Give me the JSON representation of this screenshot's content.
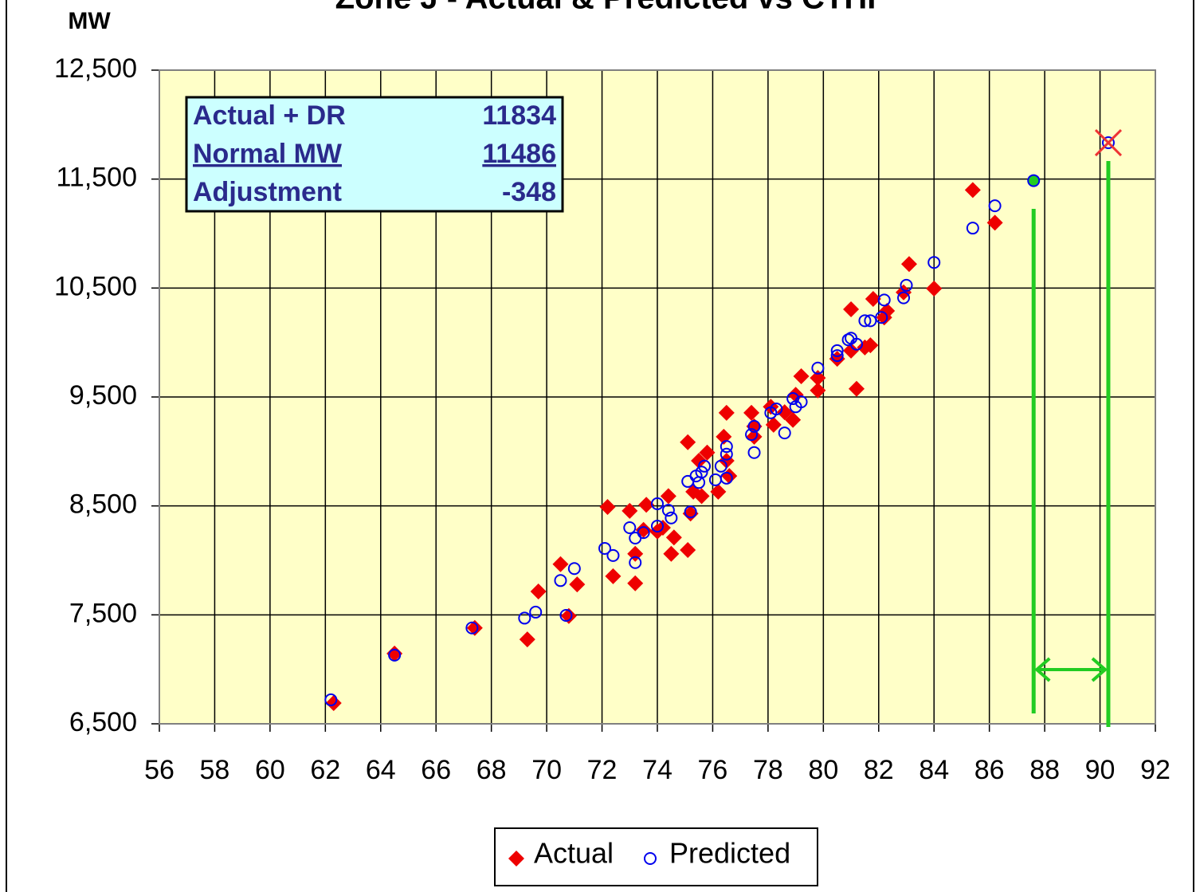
{
  "chart_data": {
    "type": "scatter",
    "title": "Zone J - Actual & Predicted vs CTHI",
    "y_label": "MW",
    "xlim": [
      56,
      92
    ],
    "xticks": [
      56,
      58,
      60,
      62,
      64,
      66,
      68,
      70,
      72,
      74,
      76,
      78,
      80,
      82,
      84,
      86,
      88,
      90,
      92
    ],
    "ylim": [
      6500,
      12500
    ],
    "yticks": [
      {
        "value": 6500,
        "label": "6,500"
      },
      {
        "value": 7500,
        "label": "7,500"
      },
      {
        "value": 8500,
        "label": "8,500"
      },
      {
        "value": 9500,
        "label": "9,500"
      },
      {
        "value": 10500,
        "label": "10,500"
      },
      {
        "value": 11500,
        "label": "11,500"
      },
      {
        "value": 12500,
        "label": "12,500"
      }
    ],
    "grid": true,
    "legend": "bottom",
    "series": [
      {
        "name": "Actual",
        "color": "#ee0000",
        "marker": "diamond",
        "x": [
          62.3,
          64.5,
          67.4,
          69.3,
          69.7,
          70.5,
          70.8,
          71.1,
          72.2,
          72.4,
          73.0,
          73.2,
          73.2,
          73.5,
          73.6,
          74.0,
          74.2,
          74.5,
          74.6,
          74.4,
          75.1,
          75.1,
          75.2,
          75.3,
          75.6,
          75.5,
          75.8,
          76.2,
          76.4,
          76.5,
          76.5,
          76.6,
          77.4,
          77.5,
          77.5,
          78.1,
          78.2,
          78.6,
          78.9,
          79.0,
          79.2,
          79.8,
          79.8,
          80.5,
          81.0,
          81.0,
          81.2,
          81.5,
          81.7,
          81.8,
          82.2,
          82.3,
          82.9,
          83.1,
          84.0,
          85.4,
          86.2
        ],
        "values": [
          6690,
          7145,
          7380,
          7275,
          7715,
          7965,
          7490,
          7780,
          8490,
          7855,
          8455,
          7790,
          8060,
          8280,
          8510,
          8265,
          8300,
          8060,
          8210,
          8590,
          8095,
          9085,
          8430,
          8630,
          8590,
          8915,
          8990,
          8630,
          9135,
          8915,
          9355,
          8775,
          9355,
          9135,
          9230,
          9410,
          9245,
          9360,
          9290,
          9520,
          9690,
          9560,
          9675,
          9850,
          9925,
          10305,
          9575,
          9955,
          9975,
          10400,
          10230,
          10290,
          10460,
          10720,
          10495,
          11400,
          11100
        ]
      },
      {
        "name": "Predicted",
        "color": "#0000ee",
        "marker": "circle",
        "x": [
          62.2,
          64.5,
          67.3,
          69.2,
          69.6,
          70.5,
          70.7,
          71.0,
          72.1,
          72.4,
          73.0,
          73.2,
          73.2,
          73.5,
          74.0,
          74.0,
          74.4,
          74.5,
          75.1,
          75.2,
          75.4,
          75.5,
          75.6,
          75.7,
          76.1,
          76.3,
          76.5,
          76.5,
          76.5,
          77.4,
          77.5,
          77.5,
          78.1,
          78.3,
          78.6,
          78.9,
          79.0,
          79.2,
          79.8,
          80.5,
          80.5,
          80.9,
          81.0,
          81.2,
          81.5,
          81.7,
          82.1,
          82.2,
          82.9,
          83.0,
          84.0,
          85.4,
          86.2
        ],
        "values": [
          6720,
          7130,
          7380,
          7470,
          7525,
          7815,
          7495,
          7925,
          8110,
          8045,
          8300,
          8205,
          7980,
          8255,
          8520,
          8315,
          8460,
          8390,
          8725,
          8445,
          8775,
          8715,
          8810,
          8865,
          8740,
          8865,
          8975,
          9045,
          8755,
          9155,
          8990,
          9230,
          9355,
          9390,
          9170,
          9485,
          9410,
          9455,
          9765,
          9925,
          9880,
          10025,
          10040,
          9985,
          10200,
          10200,
          10230,
          10390,
          10410,
          10525,
          10735,
          11050,
          11255
        ]
      }
    ],
    "markers": [
      {
        "x": 87.6,
        "color": "#22cc22"
      },
      {
        "x": 90.3,
        "color": "#ee3333"
      }
    ],
    "table": {
      "rows": [
        [
          "Actual + DR",
          11834
        ],
        [
          "Normal MW",
          11486
        ],
        [
          "Adjustment",
          -348
        ]
      ]
    }
  }
}
